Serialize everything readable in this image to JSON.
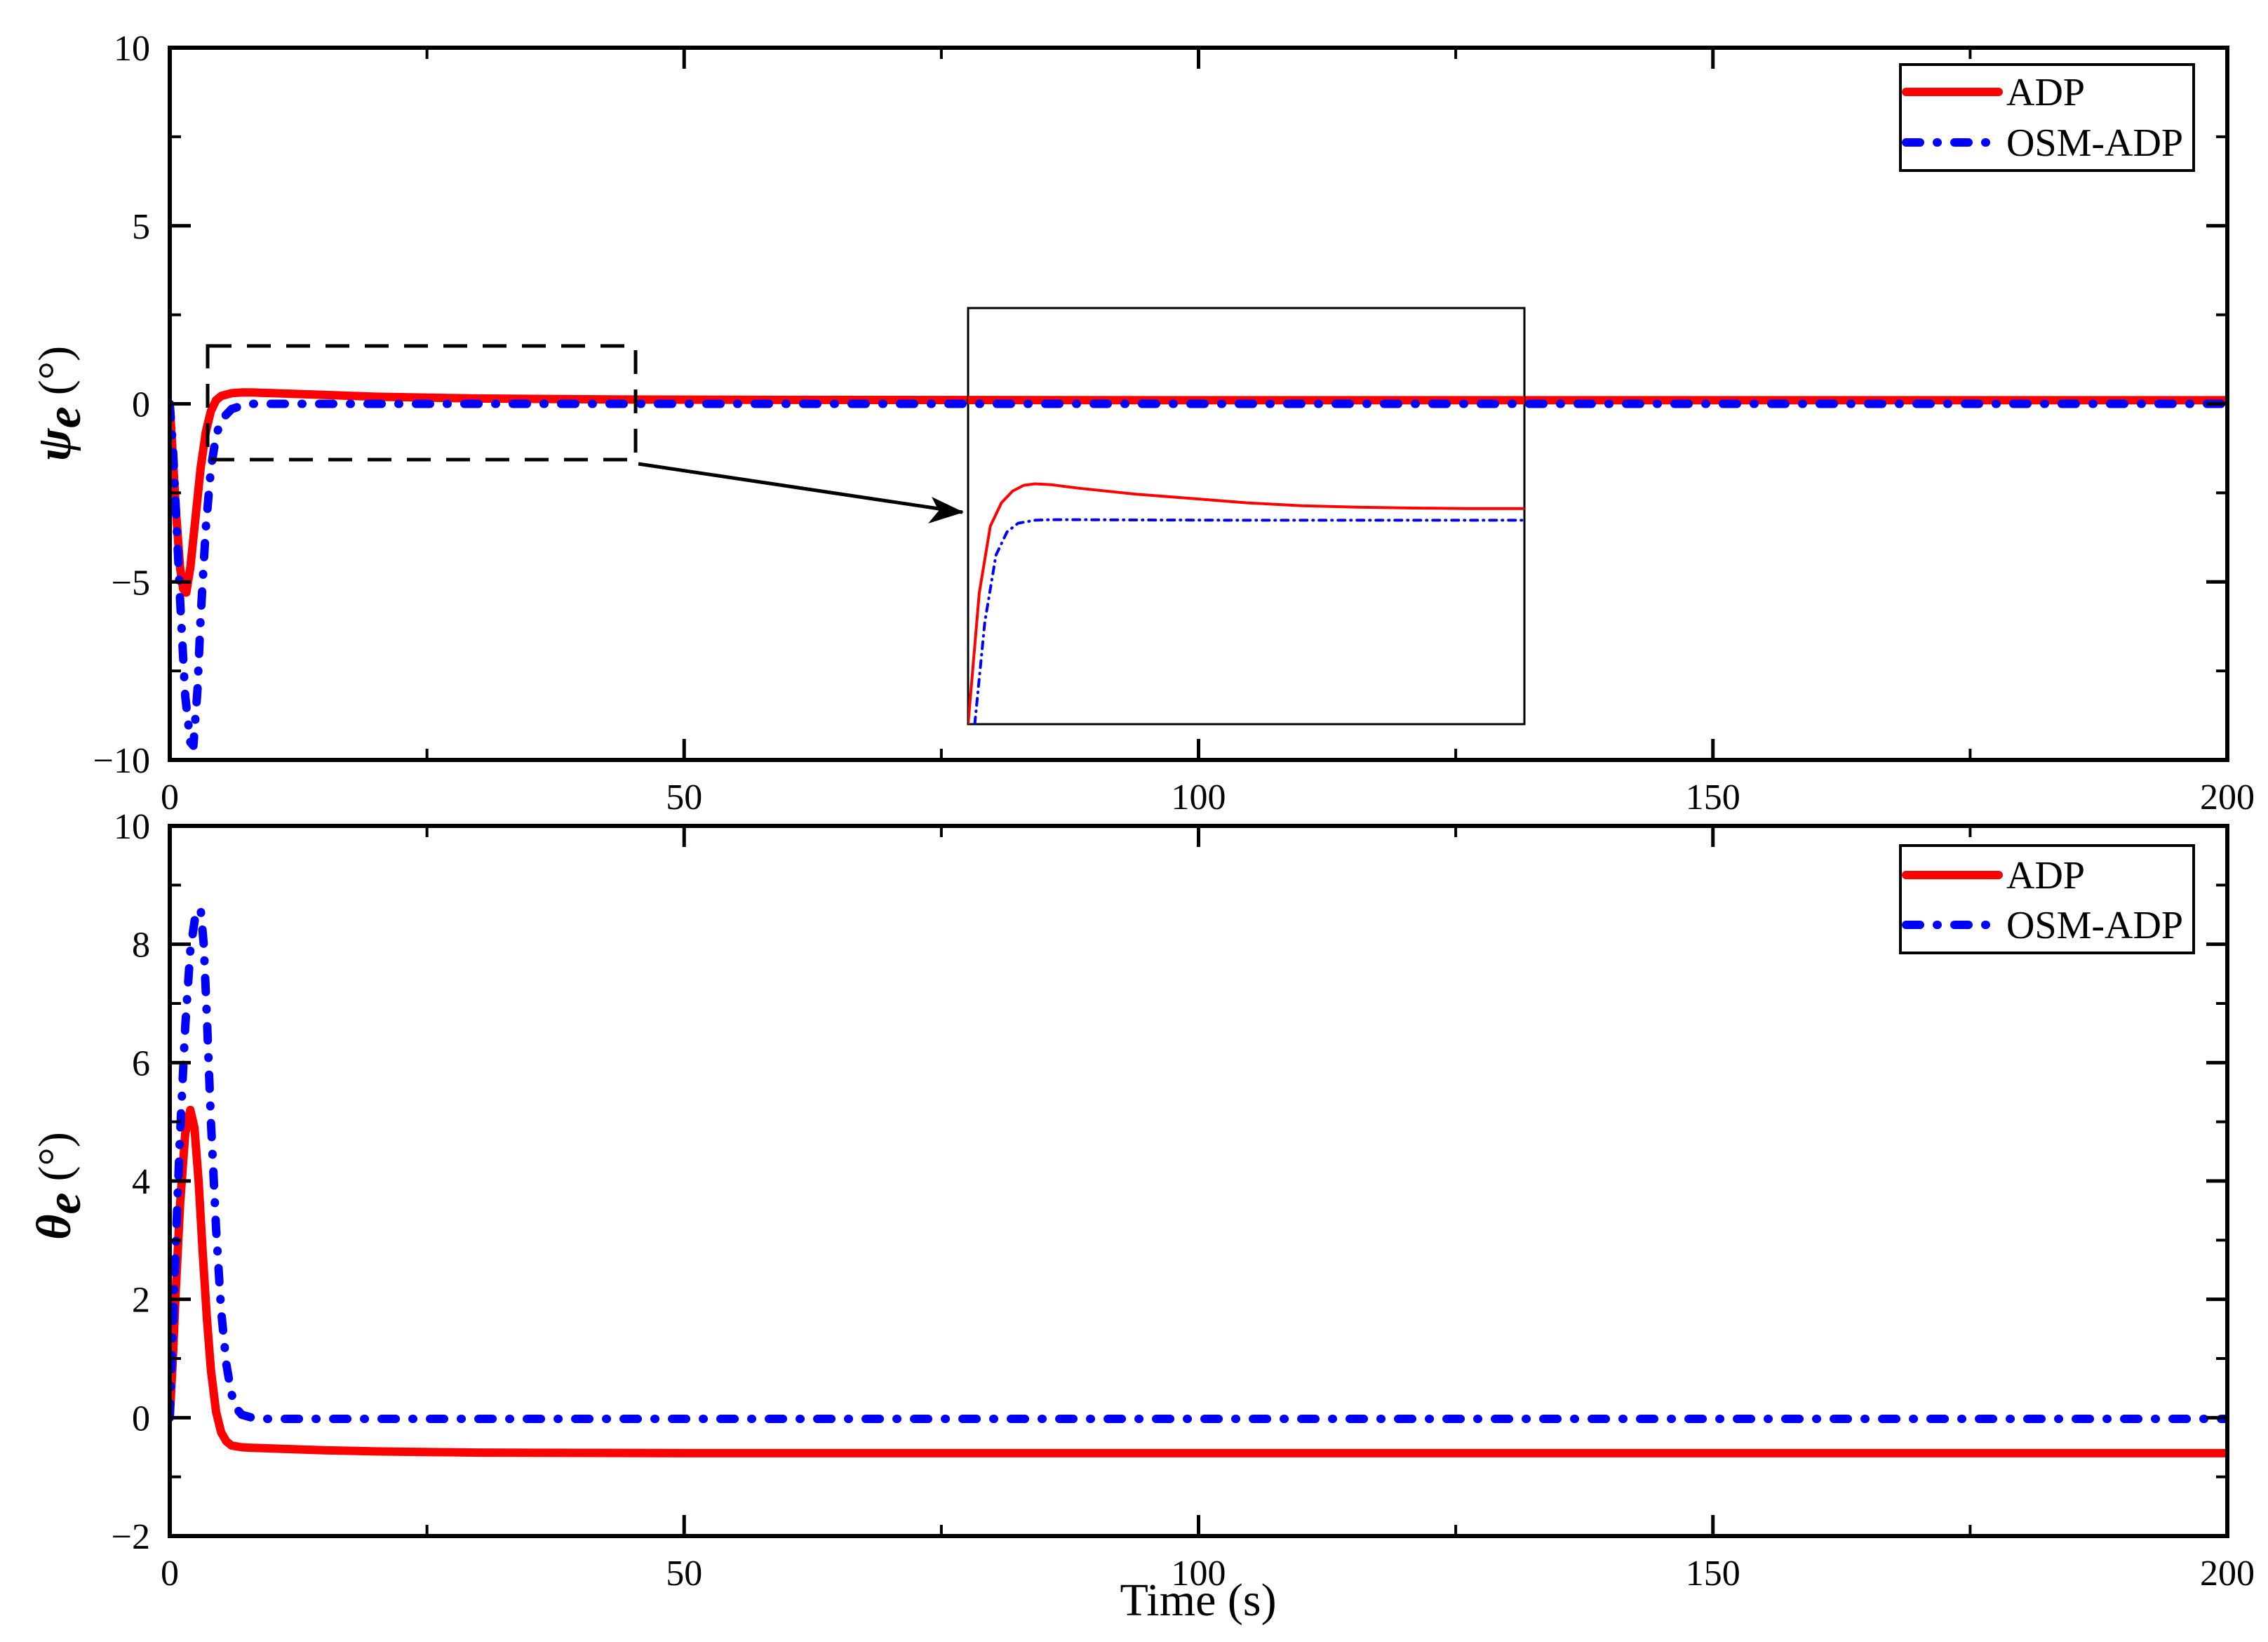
{
  "figure": {
    "xlabel": "Time (s)",
    "colors": {
      "adp": "#ff0000",
      "osm_adp": "#0000ff",
      "axis": "#000000"
    }
  },
  "chart_data": [
    {
      "type": "line",
      "title": "",
      "ylabel_symbol": "ψ",
      "ylabel_sub": "e",
      "ylabel_unit": "(°)",
      "xlabel": "",
      "xlim": [
        0,
        200
      ],
      "ylim": [
        -10,
        10
      ],
      "xticks": [
        0,
        50,
        100,
        150,
        200
      ],
      "xtick_labels": [
        "0",
        "50",
        "100",
        "150",
        "200"
      ],
      "yticks": [
        -10,
        -5,
        0,
        5,
        10
      ],
      "ytick_labels": [
        "−10",
        "−5",
        "0",
        "5",
        "10"
      ],
      "grid": false,
      "legend_position": "upper right",
      "legend": [
        "ADP",
        "OSM-ADP"
      ],
      "series": [
        {
          "name": "ADP",
          "style": "solid",
          "x": [
            0,
            0.3,
            0.6,
            1.0,
            1.3,
            1.6,
            2.0,
            2.5,
            3.0,
            3.5,
            4.0,
            4.5,
            5.0,
            6.0,
            7.0,
            8.0,
            10.0,
            15.0,
            20.0,
            30.0,
            45.0,
            60.0,
            100.0,
            150.0,
            200.0
          ],
          "y": [
            0,
            -1.5,
            -3.0,
            -4.6,
            -5.2,
            -5.3,
            -4.6,
            -3.2,
            -1.8,
            -0.8,
            -0.2,
            0.1,
            0.22,
            0.3,
            0.32,
            0.32,
            0.3,
            0.25,
            0.2,
            0.15,
            0.12,
            0.11,
            0.1,
            0.1,
            0.1
          ]
        },
        {
          "name": "OSM-ADP",
          "style": "dashdot",
          "x": [
            0,
            0.3,
            0.6,
            1.0,
            1.5,
            2.0,
            2.3,
            2.7,
            3.0,
            3.5,
            4.0,
            4.5,
            5.0,
            6.0,
            7.0,
            8.0,
            10.0,
            20.0,
            50.0,
            100.0,
            150.0,
            200.0
          ],
          "y": [
            0,
            -1.2,
            -3.0,
            -5.5,
            -8.2,
            -9.5,
            -9.6,
            -8.0,
            -6.0,
            -3.5,
            -1.8,
            -0.9,
            -0.45,
            -0.15,
            -0.05,
            0.0,
            0.0,
            0.0,
            0.0,
            0.0,
            0.0,
            0.0
          ]
        }
      ],
      "annotations": {
        "zoom_box": {
          "t_range": [
            3.7,
            45.3
          ],
          "y_range": [
            -1.57,
            1.63
          ],
          "style": "dashed"
        },
        "inset": {
          "description": "Zoomed view of t ≈ 4–45 s",
          "series": [
            {
              "name": "ADP",
              "x": [
                0.0,
                0.02,
                0.04,
                0.06,
                0.08,
                0.1,
                0.12,
                0.15,
                0.2,
                0.3,
                0.4,
                0.5,
                0.6,
                0.7,
                0.8,
                0.9,
                1.0
              ],
              "y": [
                0.0,
                0.45,
                0.68,
                0.76,
                0.8,
                0.82,
                0.825,
                0.822,
                0.81,
                0.79,
                0.775,
                0.76,
                0.75,
                0.745,
                0.742,
                0.74,
                0.74
              ]
            },
            {
              "name": "OSM-ADP",
              "x": [
                0.012,
                0.03,
                0.05,
                0.07,
                0.09,
                0.12,
                0.15,
                0.2,
                0.3,
                0.5,
                0.7,
                1.0
              ],
              "y": [
                0.0,
                0.35,
                0.58,
                0.66,
                0.69,
                0.7,
                0.702,
                0.702,
                0.701,
                0.7,
                0.7,
                0.7
              ]
            }
          ]
        }
      }
    },
    {
      "type": "line",
      "title": "",
      "ylabel_symbol": "θ",
      "ylabel_sub": "e",
      "ylabel_unit": "(°)",
      "xlabel": "Time (s)",
      "xlim": [
        0,
        200
      ],
      "ylim": [
        -2,
        10
      ],
      "xticks": [
        0,
        50,
        100,
        150,
        200
      ],
      "xtick_labels": [
        "0",
        "50",
        "100",
        "150",
        "200"
      ],
      "yticks": [
        -2,
        0,
        2,
        4,
        6,
        8,
        10
      ],
      "ytick_labels": [
        "−2",
        "0",
        "2",
        "4",
        "6",
        "8",
        "10"
      ],
      "grid": false,
      "legend_position": "upper right",
      "legend": [
        "ADP",
        "OSM-ADP"
      ],
      "series": [
        {
          "name": "ADP",
          "style": "solid",
          "x": [
            0,
            0.3,
            0.6,
            1.0,
            1.5,
            2.0,
            2.4,
            2.8,
            3.2,
            3.6,
            4.0,
            4.5,
            5.0,
            5.5,
            6.0,
            7.0,
            8.0,
            10.0,
            15.0,
            20.0,
            30.0,
            50.0,
            100.0,
            150.0,
            200.0
          ],
          "y": [
            0,
            1.0,
            2.2,
            3.6,
            4.8,
            5.2,
            4.9,
            4.0,
            2.8,
            1.7,
            0.8,
            0.1,
            -0.25,
            -0.4,
            -0.47,
            -0.5,
            -0.51,
            -0.52,
            -0.55,
            -0.57,
            -0.59,
            -0.6,
            -0.6,
            -0.6,
            -0.6
          ]
        },
        {
          "name": "OSM-ADP",
          "style": "dashdot",
          "x": [
            0,
            0.3,
            0.6,
            1.0,
            1.5,
            2.0,
            2.5,
            3.0,
            3.3,
            3.6,
            4.0,
            4.5,
            5.0,
            5.5,
            6.0,
            6.5,
            7.0,
            8.0,
            9.0,
            10.0,
            20.0,
            50.0,
            100.0,
            150.0,
            200.0
          ],
          "y": [
            0,
            1.5,
            3.0,
            4.8,
            6.6,
            7.9,
            8.5,
            8.6,
            8.0,
            6.8,
            5.0,
            3.2,
            1.8,
            0.9,
            0.4,
            0.15,
            0.05,
            0.0,
            -0.02,
            -0.02,
            -0.02,
            -0.02,
            -0.02,
            -0.02,
            -0.02
          ]
        }
      ]
    }
  ]
}
